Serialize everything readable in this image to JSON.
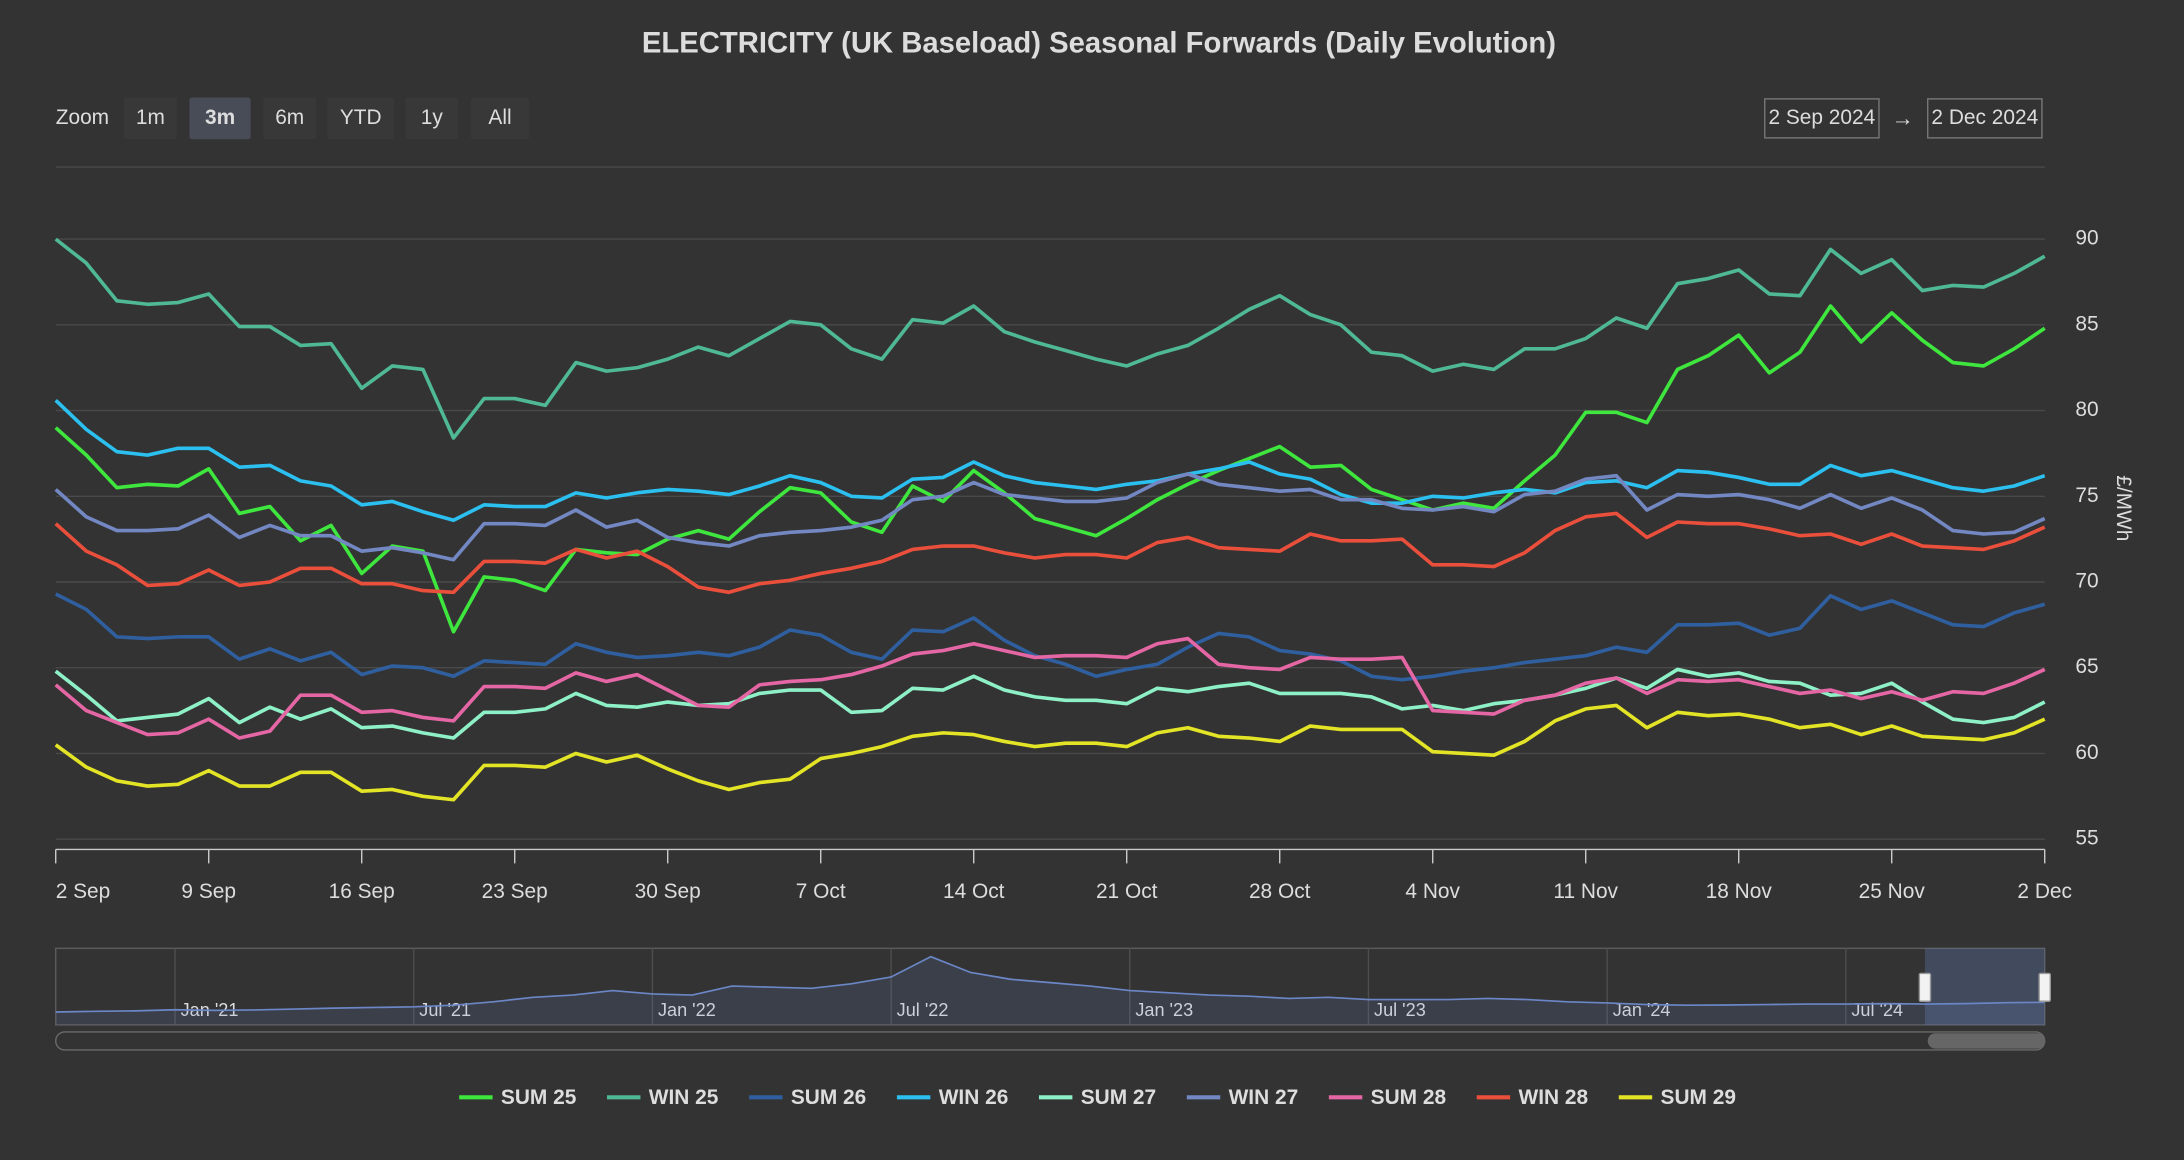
{
  "chart_data": {
    "type": "line",
    "title": "ELECTRICITY (UK Baseload) Seasonal Forwards (Daily Evolution)",
    "y_axis_label": "£/MWh",
    "ylim": [
      54.4,
      94.2
    ],
    "yticks": [
      55,
      60,
      65,
      70,
      75,
      80,
      85,
      90
    ],
    "grid": true,
    "ordinal": true,
    "legend": "bottom",
    "categories": [
      "2 Sep",
      null,
      null,
      null,
      null,
      "9 Sep",
      null,
      null,
      null,
      null,
      "16 Sep",
      null,
      null,
      null,
      null,
      "23 Sep",
      null,
      null,
      null,
      null,
      "30 Sep",
      null,
      null,
      null,
      null,
      "7 Oct",
      null,
      null,
      null,
      null,
      "14 Oct",
      null,
      null,
      null,
      null,
      "21 Oct",
      null,
      null,
      null,
      null,
      "28 Oct",
      null,
      null,
      null,
      null,
      "4 Nov",
      null,
      null,
      null,
      null,
      "11 Nov",
      null,
      null,
      null,
      null,
      "18 Nov",
      null,
      null,
      null,
      null,
      "25 Nov",
      null,
      null,
      null,
      null,
      "2 Dec"
    ],
    "series": [
      {
        "name": "SUM 25",
        "color": "#3ee63e",
        "values": [
          79.0,
          77.4,
          75.5,
          75.7,
          75.6,
          76.6,
          74.0,
          74.4,
          72.4,
          73.3,
          70.5,
          72.1,
          71.8,
          67.1,
          70.3,
          70.1,
          69.5,
          71.9,
          71.7,
          71.6,
          72.5,
          73.0,
          72.5,
          74.1,
          75.5,
          75.2,
          73.5,
          72.9,
          75.6,
          74.7,
          76.5,
          75.2,
          73.7,
          73.2,
          72.7,
          73.7,
          74.8,
          75.7,
          76.5,
          77.2,
          77.9,
          76.7,
          76.8,
          75.4,
          74.8,
          74.2,
          74.6,
          74.3,
          75.9,
          77.4,
          79.9,
          79.9,
          79.3,
          82.4,
          83.2,
          84.4,
          82.2,
          83.4,
          86.1,
          84.0,
          85.7,
          84.1,
          82.8,
          82.6,
          83.6,
          84.8
        ]
      },
      {
        "name": "WIN 25",
        "color": "#4fb894",
        "values": [
          90.0,
          88.6,
          86.4,
          86.2,
          86.3,
          86.8,
          84.9,
          84.9,
          83.8,
          83.9,
          81.3,
          82.6,
          82.4,
          78.4,
          80.7,
          80.7,
          80.3,
          82.8,
          82.3,
          82.5,
          83.0,
          83.7,
          83.2,
          84.2,
          85.2,
          85.0,
          83.6,
          83.0,
          85.3,
          85.1,
          86.1,
          84.6,
          84.0,
          83.5,
          83.0,
          82.6,
          83.3,
          83.8,
          84.8,
          85.9,
          86.7,
          85.6,
          85.0,
          83.4,
          83.2,
          82.3,
          82.7,
          82.4,
          83.6,
          83.6,
          84.2,
          85.4,
          84.8,
          87.4,
          87.7,
          88.2,
          86.8,
          86.7,
          89.4,
          88.0,
          88.8,
          87.0,
          87.3,
          87.2,
          88.0,
          89.0
        ]
      },
      {
        "name": "SUM 26",
        "color": "#2f5f9e",
        "values": [
          69.3,
          68.4,
          66.8,
          66.7,
          66.8,
          66.8,
          65.5,
          66.1,
          65.4,
          65.9,
          64.6,
          65.1,
          65.0,
          64.5,
          65.4,
          65.3,
          65.2,
          66.4,
          65.9,
          65.6,
          65.7,
          65.9,
          65.7,
          66.2,
          67.2,
          66.9,
          65.9,
          65.5,
          67.2,
          67.1,
          67.9,
          66.6,
          65.7,
          65.2,
          64.5,
          64.9,
          65.2,
          66.2,
          67.0,
          66.8,
          66.0,
          65.8,
          65.4,
          64.5,
          64.3,
          64.5,
          64.8,
          65.0,
          65.3,
          65.5,
          65.7,
          66.2,
          65.9,
          67.5,
          67.5,
          67.6,
          66.9,
          67.3,
          69.2,
          68.4,
          68.9,
          68.2,
          67.5,
          67.4,
          68.2,
          68.7
        ]
      },
      {
        "name": "WIN 26",
        "color": "#2bc0ef",
        "values": [
          80.6,
          78.9,
          77.6,
          77.4,
          77.8,
          77.8,
          76.7,
          76.8,
          75.9,
          75.6,
          74.5,
          74.7,
          74.1,
          73.6,
          74.5,
          74.4,
          74.4,
          75.2,
          74.9,
          75.2,
          75.4,
          75.3,
          75.1,
          75.6,
          76.2,
          75.8,
          75.0,
          74.9,
          76.0,
          76.1,
          77.0,
          76.2,
          75.8,
          75.6,
          75.4,
          75.7,
          75.9,
          76.3,
          76.6,
          77.0,
          76.3,
          76.0,
          75.1,
          74.6,
          74.6,
          75.0,
          74.9,
          75.2,
          75.4,
          75.2,
          75.8,
          75.9,
          75.5,
          76.5,
          76.4,
          76.1,
          75.7,
          75.7,
          76.8,
          76.2,
          76.5,
          76.0,
          75.5,
          75.3,
          75.6,
          76.2
        ]
      },
      {
        "name": "SUM 27",
        "color": "#8ef0c6",
        "values": [
          64.8,
          63.4,
          61.9,
          62.1,
          62.3,
          63.2,
          61.8,
          62.7,
          62.0,
          62.6,
          61.5,
          61.6,
          61.2,
          60.9,
          62.4,
          62.4,
          62.6,
          63.5,
          62.8,
          62.7,
          63.0,
          62.8,
          62.9,
          63.5,
          63.7,
          63.7,
          62.4,
          62.5,
          63.8,
          63.7,
          64.5,
          63.7,
          63.3,
          63.1,
          63.1,
          62.9,
          63.8,
          63.6,
          63.9,
          64.1,
          63.5,
          63.5,
          63.5,
          63.3,
          62.6,
          62.8,
          62.5,
          62.9,
          63.1,
          63.4,
          63.8,
          64.4,
          63.8,
          64.9,
          64.5,
          64.7,
          64.2,
          64.1,
          63.4,
          63.5,
          64.1,
          63.0,
          62.0,
          61.8,
          62.1,
          63.0
        ]
      },
      {
        "name": "WIN 27",
        "color": "#7387c2",
        "values": [
          75.4,
          73.8,
          73.0,
          73.0,
          73.1,
          73.9,
          72.6,
          73.3,
          72.7,
          72.7,
          71.8,
          72.0,
          71.7,
          71.3,
          73.4,
          73.4,
          73.3,
          74.2,
          73.2,
          73.6,
          72.6,
          72.3,
          72.1,
          72.7,
          72.9,
          73.0,
          73.2,
          73.6,
          74.8,
          75.0,
          75.8,
          75.1,
          74.9,
          74.7,
          74.7,
          74.9,
          75.8,
          76.3,
          75.7,
          75.5,
          75.3,
          75.4,
          74.8,
          74.8,
          74.3,
          74.2,
          74.4,
          74.1,
          75.1,
          75.3,
          76.0,
          76.2,
          74.2,
          75.1,
          75.0,
          75.1,
          74.8,
          74.3,
          75.1,
          74.3,
          74.9,
          74.2,
          73.0,
          72.8,
          72.9,
          73.7
        ]
      },
      {
        "name": "SUM 28",
        "color": "#e466a4",
        "values": [
          64.0,
          62.5,
          61.8,
          61.1,
          61.2,
          62.0,
          60.9,
          61.3,
          63.4,
          63.4,
          62.4,
          62.5,
          62.1,
          61.9,
          63.9,
          63.9,
          63.8,
          64.7,
          64.2,
          64.6,
          63.7,
          62.8,
          62.7,
          64.0,
          64.2,
          64.3,
          64.6,
          65.1,
          65.8,
          66.0,
          66.4,
          66.0,
          65.6,
          65.7,
          65.7,
          65.6,
          66.4,
          66.7,
          65.2,
          65.0,
          64.9,
          65.6,
          65.5,
          65.5,
          65.6,
          62.5,
          62.4,
          62.3,
          63.1,
          63.4,
          64.1,
          64.4,
          63.5,
          64.3,
          64.2,
          64.3,
          63.9,
          63.5,
          63.7,
          63.2,
          63.6,
          63.1,
          63.6,
          63.5,
          64.1,
          64.9
        ]
      },
      {
        "name": "WIN 28",
        "color": "#ea4f3c",
        "values": [
          73.4,
          71.8,
          71.0,
          69.8,
          69.9,
          70.7,
          69.8,
          70.0,
          70.8,
          70.8,
          69.9,
          69.9,
          69.5,
          69.4,
          71.2,
          71.2,
          71.1,
          71.9,
          71.4,
          71.8,
          70.9,
          69.7,
          69.4,
          69.9,
          70.1,
          70.5,
          70.8,
          71.2,
          71.9,
          72.1,
          72.1,
          71.7,
          71.4,
          71.6,
          71.6,
          71.4,
          72.3,
          72.6,
          72.0,
          71.9,
          71.8,
          72.8,
          72.4,
          72.4,
          72.5,
          71.0,
          71.0,
          70.9,
          71.7,
          73.0,
          73.8,
          74.0,
          72.6,
          73.5,
          73.4,
          73.4,
          73.1,
          72.7,
          72.8,
          72.2,
          72.8,
          72.1,
          72.0,
          71.9,
          72.4,
          73.2
        ]
      },
      {
        "name": "SUM 29",
        "color": "#e4e427",
        "values": [
          60.5,
          59.2,
          58.4,
          58.1,
          58.2,
          59.0,
          58.1,
          58.1,
          58.9,
          58.9,
          57.8,
          57.9,
          57.5,
          57.3,
          59.3,
          59.3,
          59.2,
          60.0,
          59.5,
          59.9,
          59.1,
          58.4,
          57.9,
          58.3,
          58.5,
          59.7,
          60.0,
          60.4,
          61.0,
          61.2,
          61.1,
          60.7,
          60.4,
          60.6,
          60.6,
          60.4,
          61.2,
          61.5,
          61.0,
          60.9,
          60.7,
          61.6,
          61.4,
          61.4,
          61.4,
          60.1,
          60.0,
          59.9,
          60.7,
          61.9,
          62.6,
          62.8,
          61.5,
          62.4,
          62.2,
          62.3,
          62.0,
          61.5,
          61.7,
          61.1,
          61.6,
          61.0,
          60.9,
          60.8,
          61.2,
          62.0
        ]
      }
    ],
    "range_selector": {
      "label": "Zoom",
      "buttons": [
        "1m",
        "3m",
        "6m",
        "YTD",
        "1y",
        "All"
      ],
      "selected": 1,
      "from": "2 Sep 2024",
      "separator": "→",
      "to": "2 Dec 2024"
    },
    "navigator": {
      "color": "#6b87c7",
      "categories": [
        null,
        null,
        null,
        "Jan '21",
        null,
        null,
        null,
        null,
        null,
        "Jul '21",
        null,
        null,
        null,
        null,
        null,
        "Jan '22",
        null,
        null,
        null,
        null,
        null,
        "Jul '22",
        null,
        null,
        null,
        null,
        null,
        "Jan '23",
        null,
        null,
        null,
        null,
        null,
        "Jul '23",
        null,
        null,
        null,
        null,
        null,
        "Jan '24",
        null,
        null,
        null,
        null,
        null,
        "Jul '24",
        null,
        null,
        null,
        null,
        null
      ],
      "values": [
        45,
        48,
        50,
        55,
        52,
        54,
        58,
        62,
        65,
        68,
        75,
        90,
        110,
        120,
        140,
        125,
        120,
        160,
        155,
        150,
        170,
        200,
        290,
        220,
        190,
        175,
        160,
        140,
        130,
        120,
        115,
        105,
        110,
        100,
        100,
        100,
        105,
        100,
        90,
        85,
        78,
        75,
        76,
        78,
        80,
        80,
        82,
        80,
        82,
        86,
        88
      ]
    }
  }
}
